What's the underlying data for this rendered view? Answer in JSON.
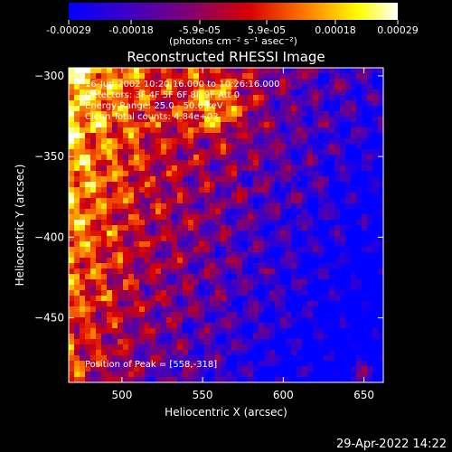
{
  "colorbar": {
    "tick_labels": [
      "-0.00029",
      "-0.00018",
      "-5.9e-05",
      "5.9e-05",
      "0.00018",
      "0.00029"
    ],
    "tick_values": [
      -0.00029,
      -0.00018,
      -5.9e-05,
      5.9e-05,
      0.00018,
      0.00029
    ],
    "range": [
      -0.00029,
      0.00029
    ],
    "unit_label": "(photons cm⁻² s⁻¹ asec⁻²)",
    "colors": [
      "#0000ff",
      "#3a00c8",
      "#7a007a",
      "#d80000",
      "#ff7a00",
      "#ffff00",
      "#ffffff"
    ]
  },
  "chart_data": {
    "type": "heatmap",
    "title": "Reconstructed RHESSI Image",
    "xlabel": "Heliocentric X (arcsec)",
    "ylabel": "Heliocentric Y (arcsec)",
    "xlim": [
      467,
      662
    ],
    "ylim": [
      -490,
      -295
    ],
    "x_ticks": [
      500,
      550,
      600,
      650
    ],
    "y_ticks": [
      -300,
      -350,
      -400,
      -450
    ],
    "annotations": [
      "16-Jun-2002 10:20:16.000 to 10:26:16.000",
      "Detectors: 3F 4F 5F 6F 8F 9F  Att 0",
      "Energy Range: 25.0 - 50.0 keV",
      "Clean    Total counts: 4.84e+03"
    ],
    "peak_label": "Position of Peak = [558,-318]",
    "peak": [
      558,
      -318
    ],
    "description": "Bright emission concentrated in upper-left quadrant (peak near 558,-318), negative background in lower-right."
  },
  "footer": {
    "timestamp": "29-Apr-2022 14:22"
  }
}
